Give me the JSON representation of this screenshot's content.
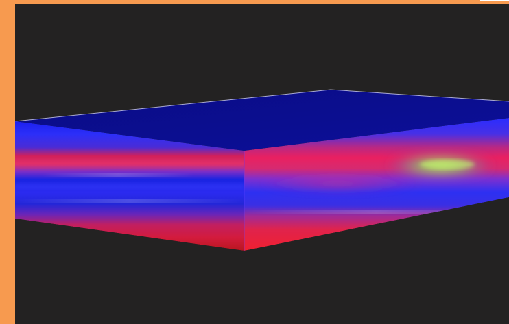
{
  "scene": {
    "subject": "volumetric-slab-render",
    "colors": {
      "frame": "#f79a4f",
      "background": "#232222",
      "top_face": "#0c0f8c",
      "band_blue": "#1f21e8",
      "band_red": "#e01b52",
      "band_purple": "#8a2bd2",
      "highlight_green": "#8cff52",
      "edge_line": "#dcdcff"
    }
  }
}
